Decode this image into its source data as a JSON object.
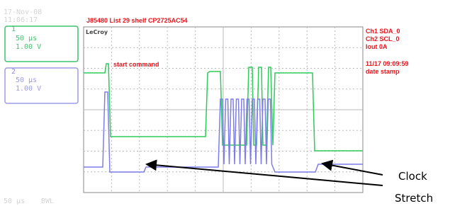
{
  "timestamp": {
    "date": "17-Nov-08",
    "time": "11:06:17"
  },
  "channels": [
    {
      "number": "1",
      "timebase": "50 µs",
      "volts": "1.00 V"
    },
    {
      "number": "2",
      "timebase": "50 µs",
      "volts": "1.00 V"
    }
  ],
  "scope": {
    "title": "J85480 List 29 shelf CP2725AC54",
    "brand": "LeCroy",
    "legend": [
      "Ch1 SDA_0",
      "Ch2 SCL_0",
      "Iout 0A"
    ],
    "stamp": "11/17 09:09:59",
    "stamp_label": "date stamp",
    "annotation": "start command"
  },
  "footer": {
    "timebase": "50 µs",
    "bwl": "BWL"
  },
  "callout": [
    "Clock",
    "Stretch"
  ]
}
